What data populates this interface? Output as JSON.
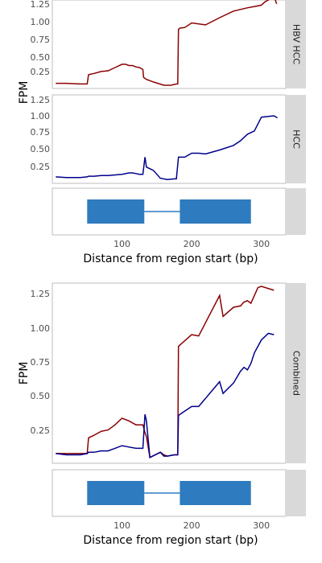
{
  "chart_data": [
    {
      "type": "line",
      "facet_label": "HBV HCC",
      "ylabel": "FPM",
      "xlim": [
        0,
        335
      ],
      "ylim": [
        0,
        1.25
      ],
      "yticks": [
        0.25,
        0.5,
        0.75,
        1.0,
        1.25
      ],
      "ytick_labels": [
        "0.25",
        "0.50",
        "0.75",
        "1.00",
        "1.25"
      ],
      "series": [
        {
          "color": "#8b0000",
          "x": [
            5,
            20,
            40,
            50,
            52,
            60,
            70,
            80,
            90,
            100,
            105,
            110,
            115,
            120,
            125,
            130,
            131,
            135,
            145,
            160,
            170,
            178,
            180,
            181,
            183,
            190,
            200,
            220,
            240,
            260,
            280,
            290,
            300,
            305,
            315,
            320,
            322
          ],
          "y": [
            0.03,
            0.03,
            0.02,
            0.02,
            0.16,
            0.18,
            0.21,
            0.22,
            0.27,
            0.32,
            0.32,
            0.3,
            0.3,
            0.28,
            0.27,
            0.24,
            0.12,
            0.09,
            0.05,
            0.0,
            0.0,
            0.02,
            0.02,
            0.85,
            0.87,
            0.88,
            0.95,
            0.92,
            1.03,
            1.13,
            1.18,
            1.2,
            1.22,
            1.27,
            1.33,
            1.3,
            1.24
          ]
        }
      ]
    },
    {
      "type": "line",
      "facet_label": "HCC",
      "ylabel": "",
      "xlim": [
        0,
        335
      ],
      "ylim": [
        0,
        1.25
      ],
      "yticks": [
        0.25,
        0.5,
        0.75,
        1.0,
        1.25
      ],
      "ytick_labels": [
        "0.25",
        "0.50",
        "0.75",
        "1.00",
        "1.25"
      ],
      "series": [
        {
          "color": "#00008b",
          "x": [
            5,
            20,
            40,
            50,
            52,
            60,
            70,
            80,
            90,
            100,
            110,
            115,
            120,
            125,
            130,
            133,
            135,
            145,
            155,
            165,
            175,
            178,
            181,
            183,
            190,
            200,
            210,
            220,
            240,
            260,
            270,
            280,
            290,
            300,
            310,
            318,
            323
          ],
          "y": [
            0.05,
            0.04,
            0.04,
            0.05,
            0.06,
            0.06,
            0.07,
            0.07,
            0.08,
            0.09,
            0.11,
            0.11,
            0.1,
            0.09,
            0.09,
            0.35,
            0.2,
            0.15,
            0.03,
            0.01,
            0.02,
            0.02,
            0.35,
            0.35,
            0.35,
            0.41,
            0.41,
            0.4,
            0.46,
            0.53,
            0.6,
            0.7,
            0.75,
            0.96,
            0.97,
            0.98,
            0.95
          ]
        }
      ]
    },
    {
      "type": "line",
      "facet_label": "Combined",
      "ylabel": "FPM",
      "xlim": [
        0,
        335
      ],
      "ylim": [
        0,
        1.33
      ],
      "yticks": [
        0.25,
        0.5,
        0.75,
        1.0,
        1.25
      ],
      "ytick_labels": [
        "0.25",
        "0.50",
        "0.75",
        "1.00",
        "1.25"
      ],
      "series": [
        {
          "color": "#8b0000",
          "x": [
            5,
            20,
            40,
            50,
            52,
            60,
            70,
            80,
            90,
            100,
            110,
            120,
            130,
            133,
            135,
            140,
            155,
            160,
            165,
            175,
            180,
            181,
            183,
            200,
            210,
            240,
            245,
            260,
            270,
            275,
            280,
            285,
            295,
            300,
            318
          ],
          "y": [
            0.05,
            0.05,
            0.05,
            0.05,
            0.17,
            0.19,
            0.22,
            0.23,
            0.27,
            0.32,
            0.3,
            0.27,
            0.27,
            0.21,
            0.18,
            0.02,
            0.06,
            0.04,
            0.03,
            0.04,
            0.04,
            0.87,
            0.88,
            0.96,
            0.95,
            1.26,
            1.1,
            1.17,
            1.18,
            1.21,
            1.22,
            1.2,
            1.32,
            1.33,
            1.3
          ]
        }
      ]
    },
    {
      "type": "line",
      "facet_label": "",
      "ylabel": "",
      "xlim": [
        0,
        335
      ],
      "ylim": [
        0,
        1.33
      ],
      "yticks": [],
      "ytick_labels": [],
      "series": [
        {
          "color": "#00008b",
          "x": [
            5,
            20,
            40,
            50,
            52,
            60,
            70,
            80,
            90,
            100,
            110,
            120,
            130,
            133,
            135,
            140,
            155,
            160,
            165,
            175,
            180,
            181,
            183,
            200,
            210,
            240,
            245,
            260,
            270,
            275,
            280,
            285,
            290,
            300,
            310,
            318
          ],
          "y": [
            0.05,
            0.04,
            0.04,
            0.05,
            0.06,
            0.06,
            0.07,
            0.07,
            0.09,
            0.11,
            0.1,
            0.09,
            0.09,
            0.35,
            0.3,
            0.02,
            0.06,
            0.03,
            0.03,
            0.04,
            0.04,
            0.34,
            0.35,
            0.41,
            0.41,
            0.6,
            0.51,
            0.59,
            0.68,
            0.71,
            0.69,
            0.74,
            0.82,
            0.92,
            0.97,
            0.96
          ]
        }
      ]
    }
  ],
  "gene_model": {
    "xlim": [
      0,
      335
    ],
    "exons": [
      [
        50,
        132
      ],
      [
        183,
        285
      ]
    ],
    "intron": [
      132,
      183
    ],
    "color": "#2e7bbf"
  },
  "x_axis": {
    "ticks": [
      100,
      200,
      300
    ],
    "tick_labels": [
      "100",
      "200",
      "300"
    ],
    "title": "Distance from region start (bp)"
  }
}
